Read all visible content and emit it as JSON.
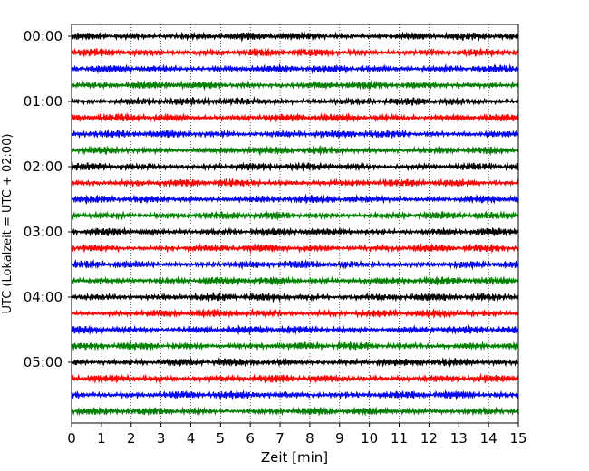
{
  "chart_data": {
    "type": "line",
    "title": "",
    "xlabel": "Zeit  [min]",
    "ylabel": "UTC (Lokalzeit = UTC + 02:00)",
    "xlim": [
      0,
      15
    ],
    "x_ticks": [
      "0",
      "1",
      "2",
      "3",
      "4",
      "5",
      "6",
      "7",
      "8",
      "9",
      "10",
      "11",
      "12",
      "13",
      "14",
      "15"
    ],
    "y_ticks": [
      "00:00",
      "01:00",
      "02:00",
      "03:00",
      "04:00",
      "05:00"
    ],
    "grid": "vertical dotted",
    "trace_interval_minutes": 15,
    "trace_count": 24,
    "trace_colors": [
      "#000000",
      "#ff0000",
      "#0000ff",
      "#007f00"
    ],
    "series": [
      {
        "time": "00:00",
        "color": "#000000"
      },
      {
        "time": "00:15",
        "color": "#ff0000"
      },
      {
        "time": "00:30",
        "color": "#0000ff"
      },
      {
        "time": "00:45",
        "color": "#007f00"
      },
      {
        "time": "01:00",
        "color": "#000000"
      },
      {
        "time": "01:15",
        "color": "#ff0000"
      },
      {
        "time": "01:30",
        "color": "#0000ff"
      },
      {
        "time": "01:45",
        "color": "#007f00"
      },
      {
        "time": "02:00",
        "color": "#000000"
      },
      {
        "time": "02:15",
        "color": "#ff0000"
      },
      {
        "time": "02:30",
        "color": "#0000ff"
      },
      {
        "time": "02:45",
        "color": "#007f00"
      },
      {
        "time": "03:00",
        "color": "#000000"
      },
      {
        "time": "03:15",
        "color": "#ff0000"
      },
      {
        "time": "03:30",
        "color": "#0000ff"
      },
      {
        "time": "03:45",
        "color": "#007f00"
      },
      {
        "time": "04:00",
        "color": "#000000"
      },
      {
        "time": "04:15",
        "color": "#ff0000"
      },
      {
        "time": "04:30",
        "color": "#0000ff"
      },
      {
        "time": "04:45",
        "color": "#007f00"
      },
      {
        "time": "05:00",
        "color": "#000000"
      },
      {
        "time": "05:15",
        "color": "#ff0000"
      },
      {
        "time": "05:30",
        "color": "#0000ff"
      },
      {
        "time": "05:45",
        "color": "#007f00"
      }
    ]
  }
}
